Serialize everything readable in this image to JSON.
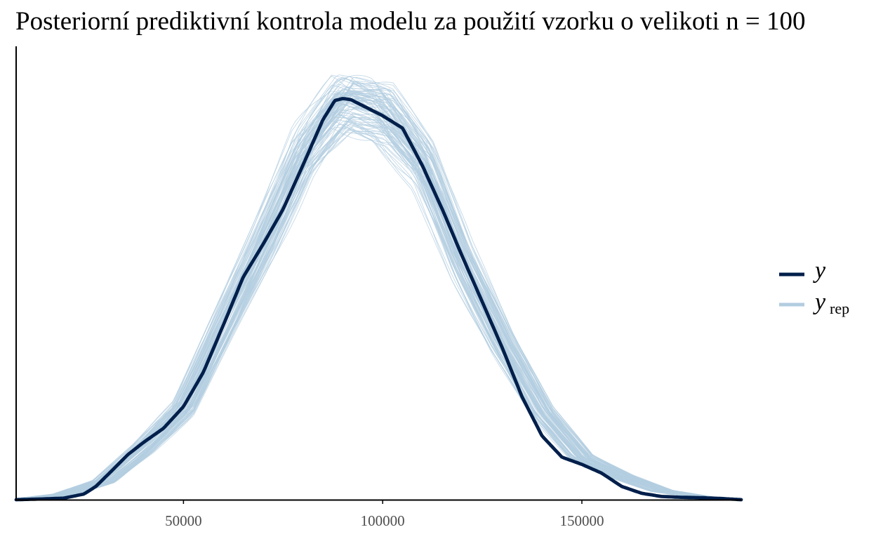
{
  "chart_data": {
    "type": "line",
    "title": "Posteriorní prediktivní kontrola modelu za použití vzorku o velikoti n = 100",
    "xlabel": "",
    "ylabel": "",
    "xlim": [
      8000,
      190000
    ],
    "ylim": [
      0,
      1.13
    ],
    "x_ticks": [
      50000,
      100000,
      150000
    ],
    "x_tick_labels": [
      "50000",
      "100000",
      "150000"
    ],
    "y_axis_ticks_shown": false,
    "grid": false,
    "legend_position": "right",
    "colors": {
      "y": "#011f4b",
      "yrep": "#b3cde0",
      "axis": "#000000"
    },
    "series": [
      {
        "name": "y",
        "style": "thick-line",
        "x": [
          8000,
          15000,
          20000,
          25000,
          28000,
          32000,
          36000,
          40000,
          45000,
          50000,
          55000,
          60000,
          65000,
          70000,
          75000,
          80000,
          85000,
          88000,
          90000,
          92000,
          95000,
          100000,
          105000,
          110000,
          115000,
          120000,
          125000,
          130000,
          135000,
          140000,
          145000,
          150000,
          155000,
          160000,
          165000,
          170000,
          175000,
          180000,
          185000,
          190000
        ],
        "values": [
          0.0,
          0.002,
          0.004,
          0.014,
          0.033,
          0.072,
          0.112,
          0.143,
          0.178,
          0.232,
          0.318,
          0.435,
          0.555,
          0.637,
          0.724,
          0.834,
          0.947,
          0.995,
          1.0,
          0.997,
          0.982,
          0.957,
          0.926,
          0.832,
          0.723,
          0.606,
          0.493,
          0.379,
          0.256,
          0.159,
          0.106,
          0.088,
          0.066,
          0.033,
          0.016,
          0.008,
          0.006,
          0.005,
          0.003,
          0.0
        ]
      },
      {
        "name": "yrep",
        "style": "thin-lines",
        "note_replicates": 100,
        "x": [
          8000,
          20000,
          30000,
          40000,
          50000,
          60000,
          70000,
          80000,
          90000,
          100000,
          110000,
          120000,
          130000,
          140000,
          150000,
          160000,
          170000,
          180000,
          190000
        ],
        "values": [
          0.0,
          0.013,
          0.045,
          0.128,
          0.228,
          0.434,
          0.641,
          0.862,
          0.988,
          0.968,
          0.843,
          0.593,
          0.391,
          0.218,
          0.104,
          0.058,
          0.022,
          0.007,
          0.0
        ]
      }
    ]
  },
  "legend": {
    "y_label": "y",
    "yrep_label": "y",
    "yrep_subscript": "rep"
  }
}
